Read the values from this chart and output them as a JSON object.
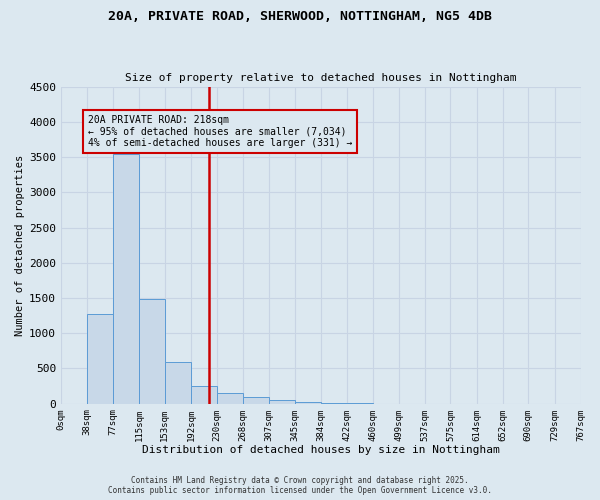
{
  "title": "20A, PRIVATE ROAD, SHERWOOD, NOTTINGHAM, NG5 4DB",
  "subtitle": "Size of property relative to detached houses in Nottingham",
  "xlabel": "Distribution of detached houses by size in Nottingham",
  "ylabel": "Number of detached properties",
  "bar_edges": [
    0,
    38,
    77,
    115,
    153,
    192,
    230,
    268,
    307,
    345,
    384,
    422,
    460,
    499,
    537,
    575,
    614,
    652,
    690,
    729,
    767
  ],
  "bar_heights": [
    0,
    1280,
    3540,
    1490,
    590,
    245,
    155,
    100,
    55,
    25,
    10,
    5,
    2,
    1,
    1,
    0,
    0,
    0,
    0,
    0
  ],
  "bar_color": "#c8d8e8",
  "bar_edge_color": "#5b9bd5",
  "property_size": 218,
  "vline_color": "#cc0000",
  "annotation_title": "20A PRIVATE ROAD: 218sqm",
  "annotation_line1": "← 95% of detached houses are smaller (7,034)",
  "annotation_line2": "4% of semi-detached houses are larger (331) →",
  "annotation_box_color": "#cc0000",
  "ylim": [
    0,
    4500
  ],
  "yticks": [
    0,
    500,
    1000,
    1500,
    2000,
    2500,
    3000,
    3500,
    4000,
    4500
  ],
  "tick_labels": [
    "0sqm",
    "38sqm",
    "77sqm",
    "115sqm",
    "153sqm",
    "192sqm",
    "230sqm",
    "268sqm",
    "307sqm",
    "345sqm",
    "384sqm",
    "422sqm",
    "460sqm",
    "499sqm",
    "537sqm",
    "575sqm",
    "614sqm",
    "652sqm",
    "690sqm",
    "729sqm",
    "767sqm"
  ],
  "grid_color": "#c8d4e4",
  "bg_color": "#dce8f0",
  "footer1": "Contains HM Land Registry data © Crown copyright and database right 2025.",
  "footer2": "Contains public sector information licensed under the Open Government Licence v3.0."
}
